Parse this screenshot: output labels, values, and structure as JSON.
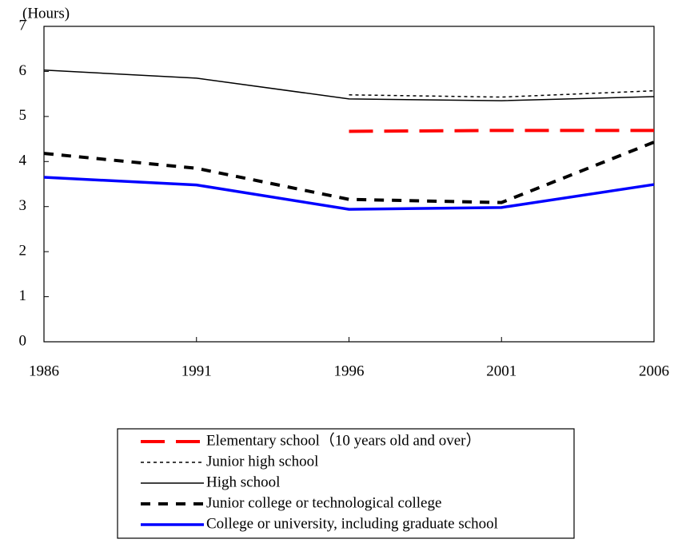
{
  "chart_data": {
    "type": "line",
    "y_label": "(Hours)",
    "x": [
      1986,
      1991,
      1996,
      2001,
      2006
    ],
    "xlim": [
      1986,
      2006
    ],
    "xticks": [
      1986,
      1991,
      1996,
      2001,
      2006
    ],
    "ylim": [
      0,
      7
    ],
    "yticks": [
      0,
      1,
      2,
      3,
      4,
      5,
      6,
      7
    ],
    "grid": false,
    "series": [
      {
        "name": "Elementary school（10 years old and over）",
        "color": "#ff0000",
        "style": "long-dash",
        "width": 4,
        "values": [
          null,
          null,
          4.67,
          4.69,
          4.69
        ]
      },
      {
        "name": "Junior high school",
        "color": "#000000",
        "style": "dotted",
        "width": 1.5,
        "values": [
          null,
          null,
          5.48,
          5.43,
          5.57
        ]
      },
      {
        "name": "High school",
        "color": "#000000",
        "style": "solid",
        "width": 1.5,
        "values": [
          6.03,
          5.85,
          5.39,
          5.35,
          5.44
        ]
      },
      {
        "name": "Junior college or technological college",
        "color": "#000000",
        "style": "dashed",
        "width": 4,
        "values": [
          4.18,
          3.85,
          3.16,
          3.09,
          4.43
        ]
      },
      {
        "name": "College or university, including graduate school",
        "color": "#0000ff",
        "style": "solid",
        "width": 3.5,
        "values": [
          3.65,
          3.48,
          2.94,
          2.98,
          3.49
        ]
      }
    ]
  }
}
